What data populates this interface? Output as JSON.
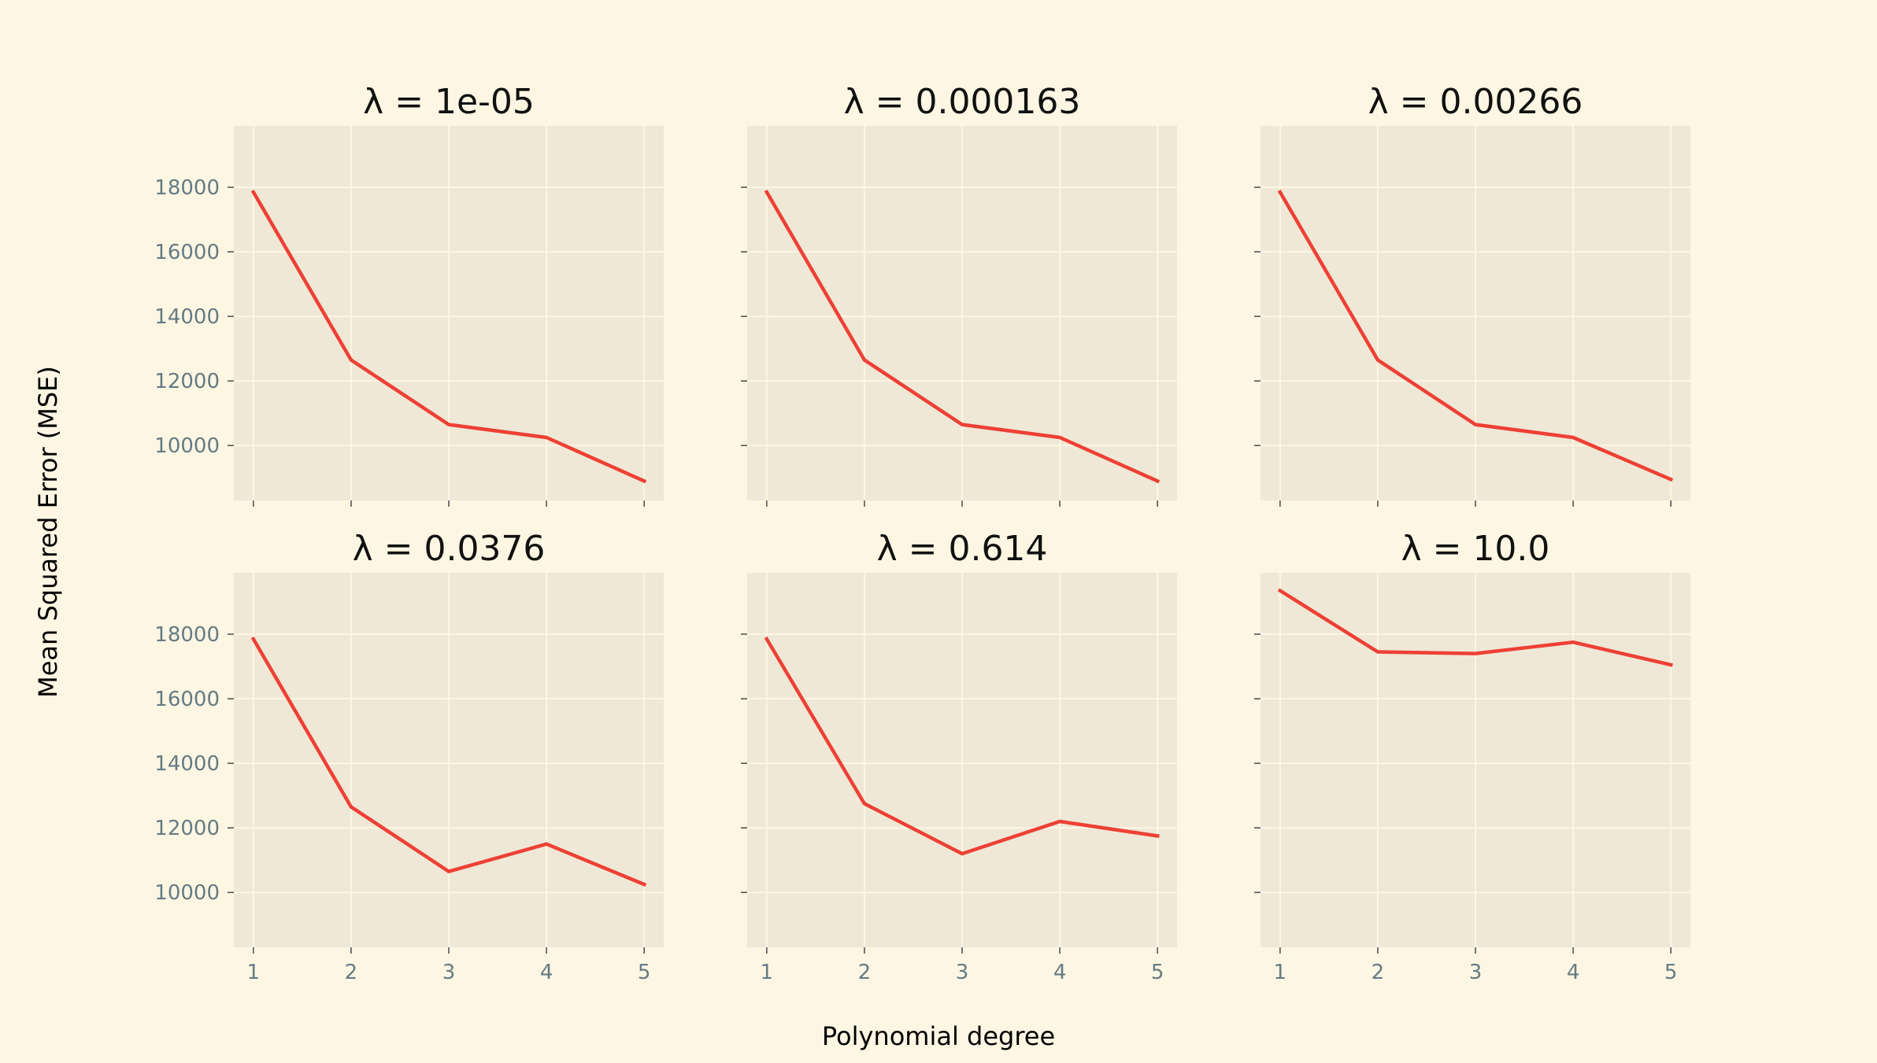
{
  "figure": {
    "xlabel": "Polynomial degree",
    "ylabel": "Mean Squared Error (MSE)",
    "line_color": "#ee4035",
    "panel_bg": "#efe8d6",
    "grid_color": "#fdf6e3",
    "tick_label_color": "#657b83"
  },
  "chart_data": [
    {
      "type": "line",
      "title": "λ = 1e-05",
      "x": [
        1,
        2,
        3,
        4,
        5
      ],
      "values": [
        17850,
        12650,
        10650,
        10250,
        8900
      ],
      "xlim": [
        0.8,
        5.2
      ],
      "ylim": [
        8300,
        19900
      ],
      "xticks": [
        1,
        2,
        3,
        4,
        5
      ],
      "yticks": [
        10000,
        12000,
        14000,
        16000,
        18000
      ],
      "show_xtick_labels": false,
      "show_ytick_labels": true,
      "grid": true
    },
    {
      "type": "line",
      "title": "λ = 0.000163",
      "x": [
        1,
        2,
        3,
        4,
        5
      ],
      "values": [
        17850,
        12650,
        10650,
        10250,
        8900
      ],
      "xlim": [
        0.8,
        5.2
      ],
      "ylim": [
        8300,
        19900
      ],
      "xticks": [
        1,
        2,
        3,
        4,
        5
      ],
      "yticks": [
        10000,
        12000,
        14000,
        16000,
        18000
      ],
      "show_xtick_labels": false,
      "show_ytick_labels": false,
      "grid": true
    },
    {
      "type": "line",
      "title": "λ = 0.00266",
      "x": [
        1,
        2,
        3,
        4,
        5
      ],
      "values": [
        17850,
        12650,
        10650,
        10250,
        8950
      ],
      "xlim": [
        0.8,
        5.2
      ],
      "ylim": [
        8300,
        19900
      ],
      "xticks": [
        1,
        2,
        3,
        4,
        5
      ],
      "yticks": [
        10000,
        12000,
        14000,
        16000,
        18000
      ],
      "show_xtick_labels": false,
      "show_ytick_labels": false,
      "grid": true
    },
    {
      "type": "line",
      "title": "λ = 0.0376",
      "x": [
        1,
        2,
        3,
        4,
        5
      ],
      "values": [
        17850,
        12650,
        10650,
        11500,
        10250
      ],
      "xlim": [
        0.8,
        5.2
      ],
      "ylim": [
        8300,
        19900
      ],
      "xticks": [
        1,
        2,
        3,
        4,
        5
      ],
      "yticks": [
        10000,
        12000,
        14000,
        16000,
        18000
      ],
      "show_xtick_labels": true,
      "show_ytick_labels": true,
      "grid": true
    },
    {
      "type": "line",
      "title": "λ = 0.614",
      "x": [
        1,
        2,
        3,
        4,
        5
      ],
      "values": [
        17850,
        12750,
        11200,
        12200,
        11750
      ],
      "xlim": [
        0.8,
        5.2
      ],
      "ylim": [
        8300,
        19900
      ],
      "xticks": [
        1,
        2,
        3,
        4,
        5
      ],
      "yticks": [
        10000,
        12000,
        14000,
        16000,
        18000
      ],
      "show_xtick_labels": true,
      "show_ytick_labels": false,
      "grid": true
    },
    {
      "type": "line",
      "title": "λ = 10.0",
      "x": [
        1,
        2,
        3,
        4,
        5
      ],
      "values": [
        19350,
        17450,
        17400,
        17750,
        17050
      ],
      "xlim": [
        0.8,
        5.2
      ],
      "ylim": [
        8300,
        19900
      ],
      "xticks": [
        1,
        2,
        3,
        4,
        5
      ],
      "yticks": [
        10000,
        12000,
        14000,
        16000,
        18000
      ],
      "show_xtick_labels": true,
      "show_ytick_labels": false,
      "grid": true
    }
  ]
}
